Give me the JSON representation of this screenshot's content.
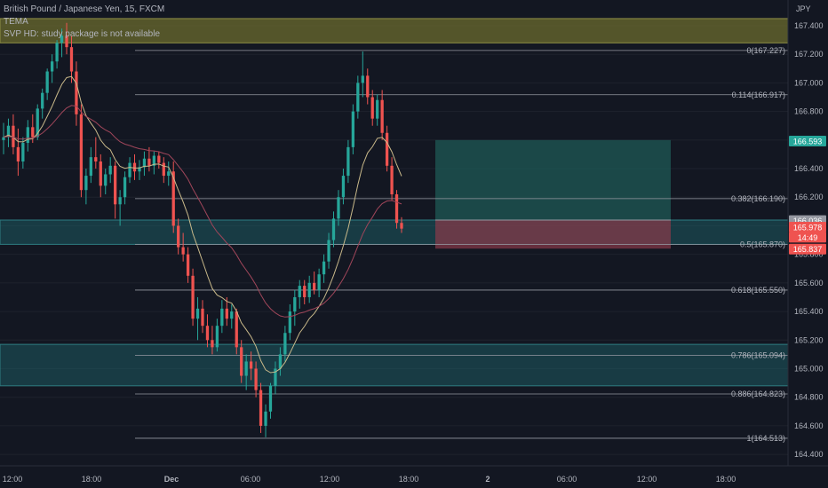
{
  "header": {
    "symbol_line": "British Pound / Japanese Yen, 15, FXCM",
    "indicator_1": "TEMA",
    "indicator_2": "SVP HD: study package is not available"
  },
  "colors": {
    "background": "#131722",
    "up": "#26a69a",
    "down": "#ef5350",
    "fib_line": "#9598a1",
    "supply_zone": "#6b6b2e",
    "demand_zone": "#1e5a61",
    "ma_fast": "#c9b98a",
    "ma_slow": "#a0465a"
  },
  "chart_data": {
    "type": "candlestick",
    "currency": "JPY",
    "ylim": [
      164.32,
      167.58
    ],
    "y_ticks": [
      "167.400",
      "167.200",
      "167.000",
      "166.800",
      "166.600",
      "166.400",
      "166.200",
      "166.000",
      "165.800",
      "165.600",
      "165.400",
      "165.200",
      "165.000",
      "164.800",
      "164.600",
      "164.400"
    ],
    "x_ticks": [
      "12:00",
      "18:00",
      "Dec",
      "06:00",
      "12:00",
      "18:00",
      "2",
      "06:00",
      "12:00",
      "18:00"
    ],
    "candles": [
      [
        166.6,
        166.72,
        166.5,
        166.62
      ],
      [
        166.62,
        166.75,
        166.55,
        166.7
      ],
      [
        166.7,
        166.78,
        166.5,
        166.55
      ],
      [
        166.55,
        166.68,
        166.35,
        166.45
      ],
      [
        166.45,
        166.62,
        166.4,
        166.58
      ],
      [
        166.58,
        166.74,
        166.52,
        166.69
      ],
      [
        166.69,
        166.78,
        166.58,
        166.62
      ],
      [
        166.62,
        166.85,
        166.6,
        166.82
      ],
      [
        166.82,
        166.96,
        166.75,
        166.93
      ],
      [
        166.93,
        167.1,
        166.88,
        167.08
      ],
      [
        167.08,
        167.2,
        167.0,
        167.15
      ],
      [
        167.15,
        167.3,
        167.1,
        167.28
      ],
      [
        167.28,
        167.38,
        167.18,
        167.33
      ],
      [
        167.33,
        167.42,
        167.2,
        167.25
      ],
      [
        167.25,
        167.33,
        167.0,
        167.08
      ],
      [
        167.08,
        167.15,
        166.7,
        166.78
      ],
      [
        166.78,
        166.85,
        166.2,
        166.25
      ],
      [
        166.25,
        166.4,
        166.15,
        166.35
      ],
      [
        166.35,
        166.55,
        166.3,
        166.48
      ],
      [
        166.48,
        166.62,
        166.4,
        166.45
      ],
      [
        166.45,
        166.5,
        166.2,
        166.28
      ],
      [
        166.28,
        166.4,
        166.22,
        166.36
      ],
      [
        166.36,
        166.48,
        166.3,
        166.42
      ],
      [
        166.42,
        166.45,
        166.05,
        166.15
      ],
      [
        166.15,
        166.25,
        166.0,
        166.2
      ],
      [
        166.2,
        166.38,
        166.15,
        166.34
      ],
      [
        166.34,
        166.48,
        166.3,
        166.44
      ],
      [
        166.44,
        166.5,
        166.32,
        166.38
      ],
      [
        166.38,
        166.46,
        166.32,
        166.41
      ],
      [
        166.41,
        166.52,
        166.35,
        166.47
      ],
      [
        166.47,
        166.55,
        166.38,
        166.42
      ],
      [
        166.42,
        166.52,
        166.36,
        166.49
      ],
      [
        166.49,
        166.52,
        166.4,
        166.44
      ],
      [
        166.44,
        166.48,
        166.3,
        166.35
      ],
      [
        166.35,
        166.45,
        166.28,
        166.38
      ],
      [
        166.38,
        166.45,
        165.95,
        166.0
      ],
      [
        166.0,
        166.05,
        165.8,
        165.85
      ],
      [
        165.85,
        165.95,
        165.75,
        165.8
      ],
      [
        165.8,
        165.85,
        165.6,
        165.65
      ],
      [
        165.65,
        165.7,
        165.3,
        165.35
      ],
      [
        165.35,
        165.5,
        165.2,
        165.42
      ],
      [
        165.42,
        165.48,
        165.25,
        165.3
      ],
      [
        165.3,
        165.38,
        165.15,
        165.2
      ],
      [
        165.2,
        165.3,
        165.1,
        165.15
      ],
      [
        165.15,
        165.35,
        165.12,
        165.3
      ],
      [
        165.3,
        165.48,
        165.25,
        165.42
      ],
      [
        165.42,
        165.5,
        165.3,
        165.35
      ],
      [
        165.35,
        165.45,
        165.28,
        165.4
      ],
      [
        165.4,
        165.42,
        165.1,
        165.15
      ],
      [
        165.15,
        165.2,
        164.9,
        164.95
      ],
      [
        164.95,
        165.1,
        164.85,
        165.05
      ],
      [
        165.05,
        165.12,
        164.92,
        165.0
      ],
      [
        165.0,
        165.05,
        164.8,
        164.85
      ],
      [
        164.85,
        164.9,
        164.55,
        164.6
      ],
      [
        164.6,
        164.75,
        164.52,
        164.7
      ],
      [
        164.7,
        164.9,
        164.65,
        164.88
      ],
      [
        164.88,
        165.05,
        164.82,
        165.0
      ],
      [
        165.0,
        165.15,
        164.95,
        165.1
      ],
      [
        165.1,
        165.3,
        165.05,
        165.25
      ],
      [
        165.25,
        165.45,
        165.2,
        165.4
      ],
      [
        165.4,
        165.55,
        165.3,
        165.5
      ],
      [
        165.5,
        165.62,
        165.42,
        165.58
      ],
      [
        165.58,
        165.62,
        165.45,
        165.5
      ],
      [
        165.5,
        165.65,
        165.46,
        165.6
      ],
      [
        165.6,
        165.68,
        165.52,
        165.55
      ],
      [
        165.55,
        165.7,
        165.5,
        165.66
      ],
      [
        165.66,
        165.8,
        165.6,
        165.75
      ],
      [
        165.75,
        165.95,
        165.7,
        165.9
      ],
      [
        165.9,
        166.1,
        165.85,
        166.05
      ],
      [
        166.05,
        166.25,
        166.0,
        166.2
      ],
      [
        166.2,
        166.4,
        166.15,
        166.35
      ],
      [
        166.35,
        166.6,
        166.3,
        166.55
      ],
      [
        166.55,
        166.85,
        166.5,
        166.8
      ],
      [
        166.8,
        167.05,
        166.75,
        167.0
      ],
      [
        167.0,
        167.22,
        166.9,
        167.05
      ],
      [
        167.05,
        167.1,
        166.85,
        166.9
      ],
      [
        166.9,
        166.95,
        166.7,
        166.75
      ],
      [
        166.75,
        166.92,
        166.7,
        166.88
      ],
      [
        166.88,
        166.95,
        166.6,
        166.65
      ],
      [
        166.65,
        166.7,
        166.38,
        166.42
      ],
      [
        166.42,
        166.48,
        166.18,
        166.22
      ],
      [
        166.22,
        166.25,
        165.98,
        166.02
      ],
      [
        166.02,
        166.06,
        165.95,
        165.98
      ]
    ],
    "fib_levels": [
      {
        "ratio": 0,
        "price": 167.227,
        "label": "0(167.227)"
      },
      {
        "ratio": 0.114,
        "price": 166.917,
        "label": "0.114(166.917)"
      },
      {
        "ratio": 0.382,
        "price": 166.19,
        "label": "0.382(166.190)"
      },
      {
        "ratio": 0.5,
        "price": 165.87,
        "label": "0.5(165.870)"
      },
      {
        "ratio": 0.618,
        "price": 165.55,
        "label": "0.618(165.550)"
      },
      {
        "ratio": 0.786,
        "price": 165.094,
        "label": "0.786(165.094)"
      },
      {
        "ratio": 0.886,
        "price": 164.823,
        "label": "0.886(164.823)"
      },
      {
        "ratio": 1,
        "price": 164.513,
        "label": "1(164.513)"
      }
    ],
    "zones": [
      {
        "kind": "supply",
        "top": 167.45,
        "bottom": 167.28
      },
      {
        "kind": "demand",
        "top": 166.04,
        "bottom": 165.87
      },
      {
        "kind": "demand",
        "top": 165.17,
        "bottom": 164.88
      }
    ],
    "position": {
      "target": 166.6,
      "entry": 166.04,
      "stop": 165.84
    },
    "price_labels": [
      {
        "text": "166.593",
        "price": 166.593,
        "color": "#26a69a"
      },
      {
        "text": "166.036",
        "price": 166.036,
        "color": "#9598a1"
      },
      {
        "text": "165.978",
        "price": 165.99,
        "color": "#ef5350"
      },
      {
        "text": "14:49",
        "price": 165.92,
        "color": "#ef5350"
      },
      {
        "text": "165.837",
        "price": 165.837,
        "color": "#ef5350"
      }
    ]
  }
}
